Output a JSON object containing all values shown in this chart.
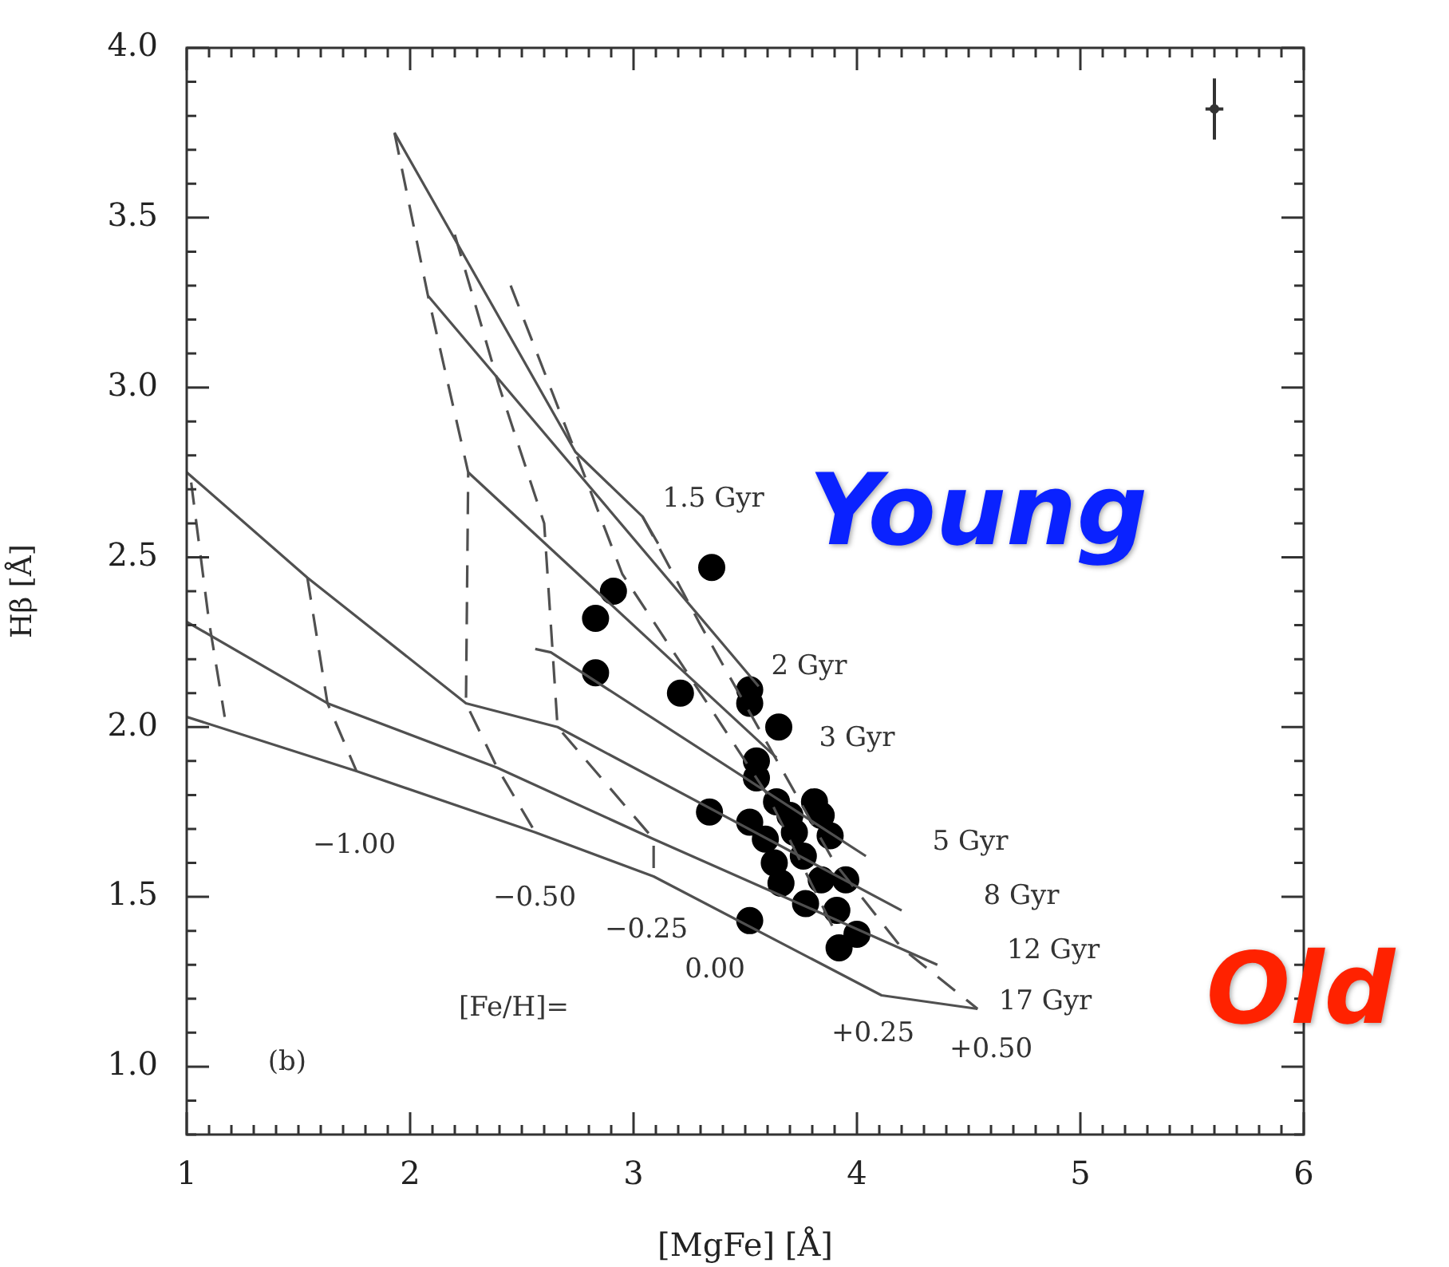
{
  "chart_data": {
    "type": "scatter",
    "xlabel": "[MgFe] [Å]",
    "ylabel": "Hβ [Å]",
    "xlim": [
      1,
      6
    ],
    "xticks": [
      1,
      2,
      3,
      4,
      5,
      6
    ],
    "ylim": [
      0.8,
      4.0
    ],
    "yticks": [
      {
        "value": 1,
        "label": "1.0"
      },
      {
        "value": 1.5,
        "label": "1.5"
      },
      {
        "value": 2,
        "label": "2.0"
      },
      {
        "value": 2.5,
        "label": "2.5"
      },
      {
        "value": 3,
        "label": "3.0"
      },
      {
        "value": 3.5,
        "label": "3.5"
      },
      {
        "value": 4,
        "label": "4.0"
      }
    ],
    "grid": false,
    "legend": false,
    "series": [
      {
        "type": "line",
        "line_style": "solid",
        "marker": "none",
        "color": "#505050",
        "x": [
          1.93,
          2.74,
          3.04,
          3.11
        ],
        "values": [
          3.75,
          2.81,
          2.62,
          2.54
        ]
      },
      {
        "type": "line",
        "line_style": "solid",
        "marker": "none",
        "color": "#505050",
        "x": [
          2.08,
          3.56
        ],
        "values": [
          3.27,
          2.12
        ]
      },
      {
        "type": "line",
        "line_style": "solid",
        "marker": "none",
        "color": "#505050",
        "x": [
          2.26,
          3.64
        ],
        "values": [
          2.75,
          1.91
        ]
      },
      {
        "type": "line",
        "line_style": "solid",
        "marker": "none",
        "color": "#505050",
        "x": [
          2.56,
          2.63,
          4.04
        ],
        "values": [
          2.23,
          2.22,
          1.62
        ]
      },
      {
        "type": "line",
        "line_style": "solid",
        "marker": "none",
        "color": "#505050",
        "x": [
          1.0,
          1.54,
          2.25,
          2.66,
          4.2
        ],
        "values": [
          2.75,
          2.44,
          2.07,
          2.0,
          1.46
        ]
      },
      {
        "type": "line",
        "line_style": "solid",
        "marker": "none",
        "color": "#505050",
        "x": [
          1.0,
          1.63,
          2.39,
          3.09,
          4.36
        ],
        "values": [
          2.31,
          2.07,
          1.88,
          1.67,
          1.3
        ]
      },
      {
        "type": "line",
        "line_style": "solid",
        "marker": "none",
        "color": "#505050",
        "x": [
          1.0,
          1.76,
          2.56,
          3.09,
          4.11,
          4.54
        ],
        "values": [
          2.03,
          1.87,
          1.69,
          1.56,
          1.21,
          1.17
        ]
      },
      {
        "type": "line",
        "line_style": "dashed",
        "marker": "none",
        "color": "#505050",
        "x": [
          1.02,
          1.1,
          1.17
        ],
        "values": [
          2.72,
          2.31,
          2.03
        ]
      },
      {
        "type": "line",
        "line_style": "dashed",
        "marker": "none",
        "color": "#505050",
        "x": [
          1.54,
          1.63,
          1.76
        ],
        "values": [
          2.44,
          2.07,
          1.87
        ]
      },
      {
        "type": "line",
        "line_style": "dashed",
        "marker": "none",
        "color": "#505050",
        "x": [
          1.93,
          2.08,
          2.26,
          2.25,
          2.39,
          2.56
        ],
        "values": [
          3.75,
          3.27,
          2.75,
          2.07,
          1.88,
          1.69
        ]
      },
      {
        "type": "line",
        "line_style": "dashed",
        "marker": "none",
        "color": "#505050",
        "x": [
          2.2,
          2.4,
          2.6,
          2.66,
          3.09,
          3.09
        ],
        "values": [
          3.45,
          3.0,
          2.6,
          2.0,
          1.67,
          1.56
        ]
      },
      {
        "type": "line",
        "line_style": "dashed",
        "marker": "none",
        "color": "#505050",
        "x": [
          2.45,
          2.74,
          2.95,
          3.2,
          3.6,
          3.9
        ],
        "values": [
          3.3,
          2.81,
          2.45,
          2.2,
          1.8,
          1.4
        ]
      },
      {
        "type": "line",
        "line_style": "dashed",
        "marker": "none",
        "color": "#505050",
        "x": [
          3.04,
          3.3,
          3.6,
          3.9,
          4.2,
          4.54
        ],
        "values": [
          2.62,
          2.3,
          1.95,
          1.6,
          1.35,
          1.17
        ]
      },
      {
        "marker": "circle",
        "color": "#000000",
        "x": [
          3.35,
          2.91,
          2.83,
          2.83,
          3.21,
          3.52,
          3.52,
          3.65,
          3.55,
          3.55,
          3.34,
          3.52,
          3.64,
          3.81,
          3.84,
          3.88,
          3.72,
          3.59,
          3.63,
          3.76,
          3.66,
          3.77,
          3.95,
          3.91,
          3.92,
          4.0,
          3.52,
          3.84,
          3.7
        ],
        "values": [
          2.47,
          2.4,
          2.32,
          2.16,
          2.1,
          2.11,
          2.07,
          2.0,
          1.9,
          1.85,
          1.75,
          1.72,
          1.78,
          1.78,
          1.74,
          1.68,
          1.69,
          1.67,
          1.6,
          1.62,
          1.54,
          1.48,
          1.55,
          1.46,
          1.35,
          1.39,
          1.43,
          1.55,
          1.74
        ]
      },
      {
        "marker": "circle",
        "color": "#333333",
        "x": [
          5.6
        ],
        "values": [
          3.82
        ],
        "errors": [
          0.09
        ],
        "xerrors": [
          0.04
        ]
      }
    ],
    "annotations": [
      "1.5 Gyr",
      "2 Gyr",
      "3 Gyr",
      "5 Gyr",
      "8 Gyr",
      "12 Gyr",
      "17 Gyr",
      "−1.00",
      "−0.50",
      "−0.25",
      "0.00",
      "+0.25",
      "+0.50",
      "[Fe/H]=",
      "(b)",
      "Young",
      "Old"
    ]
  }
}
